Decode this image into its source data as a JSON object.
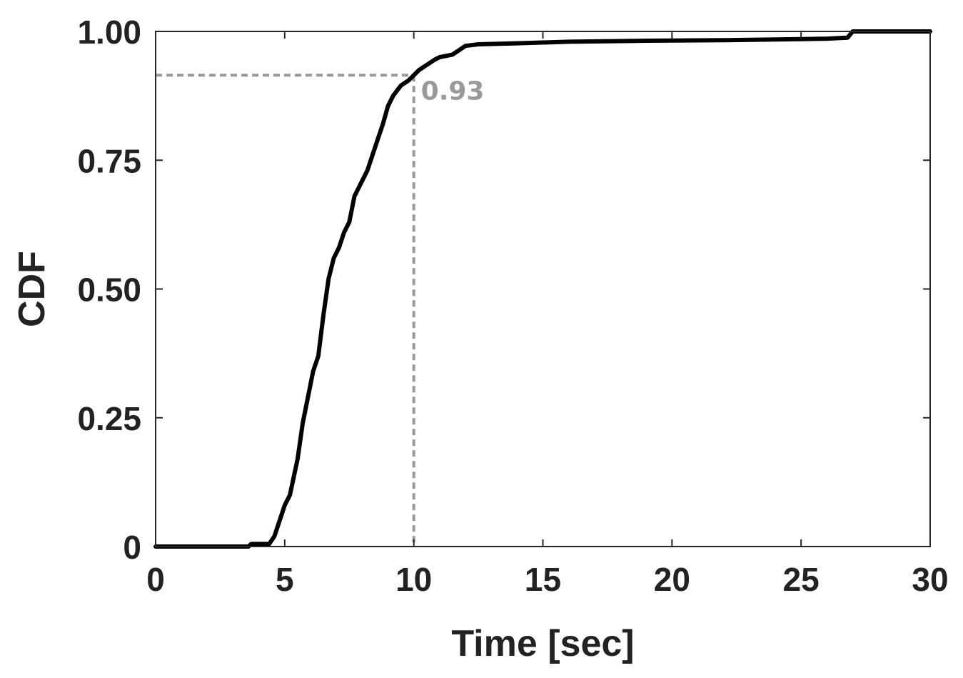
{
  "chart_data": {
    "type": "line",
    "xlabel": "Time [sec]",
    "ylabel": "CDF",
    "xlim": [
      0,
      30
    ],
    "ylim": [
      0,
      1
    ],
    "xticks": [
      0,
      5,
      10,
      15,
      20,
      25,
      30
    ],
    "xtick_labels": [
      "0",
      "5",
      "10",
      "15",
      "20",
      "25",
      "30"
    ],
    "yticks": [
      0,
      0.25,
      0.5,
      0.75,
      1.0
    ],
    "ytick_labels": [
      "0",
      "0.25",
      "0.50",
      "0.75",
      "1.00"
    ],
    "grid": false,
    "line_color": "#000000",
    "annotation": {
      "text": "0.93",
      "x": 10,
      "y": 0.915,
      "color": "#999999"
    },
    "series": [
      {
        "values_x": [
          0,
          3.6,
          3.7,
          4.4,
          4.6,
          4.8,
          5.0,
          5.2,
          5.5,
          5.7,
          5.9,
          6.1,
          6.3,
          6.5,
          6.7,
          6.9,
          7.1,
          7.3,
          7.5,
          7.7,
          7.9,
          8.0,
          8.2,
          8.4,
          8.6,
          8.8,
          9.0,
          9.2,
          9.5,
          9.8,
          10.0,
          10.2,
          10.5,
          10.8,
          11.0,
          11.5,
          12.0,
          12.5,
          14.0,
          16.0,
          19.0,
          22.0,
          25.0,
          26.0,
          26.8,
          27.0,
          28.0,
          30.0
        ],
        "values_y": [
          0,
          0,
          0.005,
          0.005,
          0.02,
          0.05,
          0.08,
          0.1,
          0.17,
          0.24,
          0.29,
          0.34,
          0.37,
          0.45,
          0.52,
          0.56,
          0.58,
          0.61,
          0.63,
          0.68,
          0.7,
          0.71,
          0.73,
          0.76,
          0.79,
          0.82,
          0.855,
          0.875,
          0.895,
          0.905,
          0.915,
          0.925,
          0.935,
          0.945,
          0.95,
          0.955,
          0.972,
          0.975,
          0.977,
          0.98,
          0.982,
          0.983,
          0.985,
          0.986,
          0.988,
          1.0,
          1.0,
          1.0
        ]
      }
    ]
  }
}
